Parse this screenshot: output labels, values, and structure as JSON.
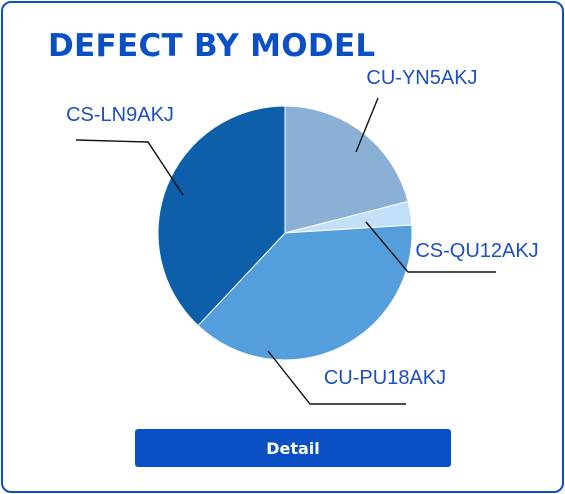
{
  "colors": {
    "border": "#0a4fc4",
    "title": "#0a4fc4",
    "label": "#1c4fbf",
    "button": "#0a4fc4",
    "button_text": "#ffffff"
  },
  "header": {
    "title": "DEFECT BY MODEL"
  },
  "chart_data": {
    "type": "pie",
    "title": "DEFECT BY MODEL",
    "start_angle_deg": -90,
    "direction": "clockwise",
    "slices": [
      {
        "label": "CU-YN5AKJ",
        "value": 21,
        "color": "#8ab0d6"
      },
      {
        "label": "CS-QU12AKJ",
        "value": 3,
        "color": "#c4e0f8"
      },
      {
        "label": "CU-PU18AKJ",
        "value": 38,
        "color": "#549edc"
      },
      {
        "label": "CS-LN9AKJ",
        "value": 38,
        "color": "#0d5faa"
      }
    ]
  },
  "footer": {
    "detail_label": "Detail"
  }
}
